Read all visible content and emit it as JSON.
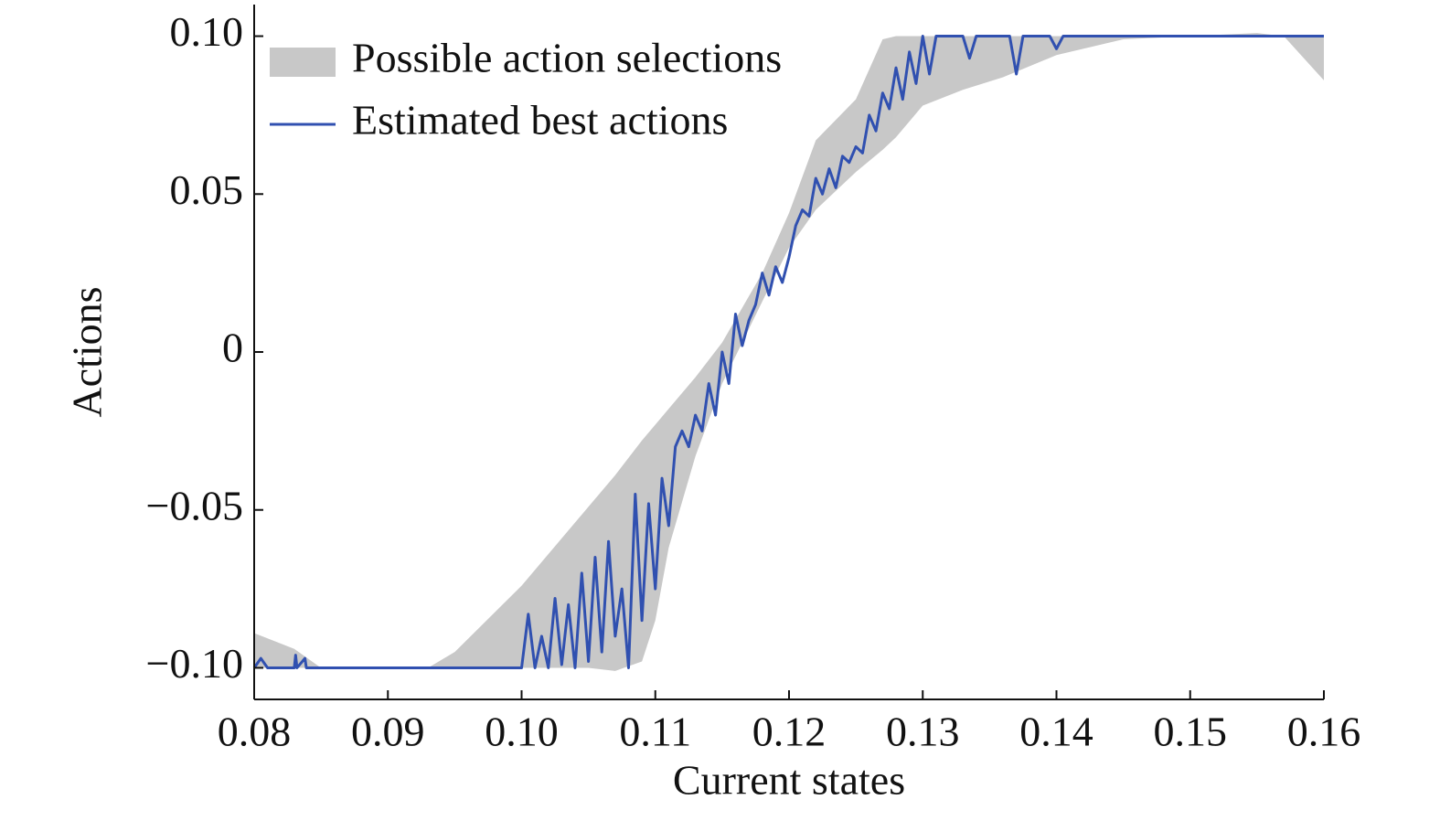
{
  "chart_data": {
    "type": "line",
    "xlabel": "Current states",
    "ylabel": "Actions",
    "xlim": [
      0.08,
      0.16
    ],
    "ylim": [
      -0.11,
      0.11
    ],
    "xticks": [
      0.08,
      0.09,
      {
        "value": 0.1,
        "label": "0.10"
      },
      0.11,
      0.12,
      0.13,
      0.14,
      0.15,
      0.16
    ],
    "yticks": [
      {
        "value": -0.1,
        "label": "−0.10"
      },
      {
        "value": -0.05,
        "label": "−0.05"
      },
      0,
      0.05,
      {
        "value": 0.1,
        "label": "0.10"
      }
    ],
    "legend": "upper left",
    "series": [
      {
        "name": "Possible action selections",
        "color": "#c8c8c8",
        "x": [
          0.08,
          0.083,
          0.085,
          0.093,
          0.095,
          0.1,
          0.105,
          0.107,
          0.109,
          0.11,
          0.111,
          0.113,
          0.115,
          0.118,
          0.12,
          0.122,
          0.125,
          0.127,
          0.128,
          0.13,
          0.133,
          0.136,
          0.14,
          0.145,
          0.15,
          0.155,
          0.157,
          0.16
        ],
        "upper": [
          -0.089,
          -0.094,
          -0.1,
          -0.1,
          -0.095,
          -0.074,
          -0.049,
          -0.039,
          -0.028,
          -0.023,
          -0.018,
          -0.008,
          0.003,
          0.025,
          0.044,
          0.067,
          0.08,
          0.099,
          0.1,
          0.1,
          0.1,
          0.1,
          0.1,
          0.1,
          0.1,
          0.101,
          0.1,
          0.1
        ],
        "lower": [
          -0.1,
          -0.1,
          -0.1,
          -0.1,
          -0.1,
          -0.1,
          -0.1,
          -0.101,
          -0.098,
          -0.085,
          -0.062,
          -0.033,
          -0.01,
          0.016,
          0.033,
          0.045,
          0.057,
          0.064,
          0.068,
          0.078,
          0.083,
          0.087,
          0.094,
          0.099,
          0.1,
          0.1,
          0.1,
          0.086
        ]
      },
      {
        "name": "Estimated best actions",
        "color": "#3050b0",
        "x": [
          0.08,
          0.0805,
          0.081,
          0.083,
          0.0831,
          0.0832,
          0.0838,
          0.0839,
          0.1,
          0.1005,
          0.101,
          0.1015,
          0.102,
          0.1025,
          0.103,
          0.1035,
          0.104,
          0.1045,
          0.105,
          0.1055,
          0.106,
          0.1065,
          0.107,
          0.1075,
          0.108,
          0.1085,
          0.109,
          0.1095,
          0.11,
          0.1105,
          0.111,
          0.1115,
          0.112,
          0.1125,
          0.113,
          0.1135,
          0.114,
          0.1145,
          0.115,
          0.1155,
          0.116,
          0.1165,
          0.117,
          0.1175,
          0.118,
          0.1185,
          0.119,
          0.1195,
          0.12,
          0.1205,
          0.121,
          0.1215,
          0.122,
          0.1225,
          0.123,
          0.1235,
          0.124,
          0.1245,
          0.125,
          0.1255,
          0.126,
          0.1265,
          0.127,
          0.1275,
          0.128,
          0.1285,
          0.129,
          0.1295,
          0.13,
          0.1305,
          0.131,
          0.133,
          0.1335,
          0.134,
          0.1365,
          0.137,
          0.1375,
          0.1395,
          0.14,
          0.1405,
          0.16
        ],
        "values": [
          -0.1,
          -0.097,
          -0.1,
          -0.1,
          -0.096,
          -0.1,
          -0.097,
          -0.1,
          -0.1,
          -0.083,
          -0.1,
          -0.09,
          -0.1,
          -0.078,
          -0.099,
          -0.08,
          -0.1,
          -0.07,
          -0.098,
          -0.065,
          -0.095,
          -0.06,
          -0.09,
          -0.075,
          -0.1,
          -0.045,
          -0.085,
          -0.048,
          -0.075,
          -0.04,
          -0.055,
          -0.03,
          -0.025,
          -0.03,
          -0.02,
          -0.025,
          -0.01,
          -0.02,
          0,
          -0.01,
          0.012,
          0.002,
          0.01,
          0.015,
          0.025,
          0.018,
          0.027,
          0.022,
          0.03,
          0.04,
          0.045,
          0.043,
          0.055,
          0.05,
          0.058,
          0.052,
          0.062,
          0.06,
          0.065,
          0.063,
          0.075,
          0.07,
          0.082,
          0.077,
          0.09,
          0.08,
          0.095,
          0.085,
          0.1,
          0.088,
          0.1,
          0.1,
          0.093,
          0.1,
          0.1,
          0.088,
          0.1,
          0.1,
          0.096,
          0.1,
          0.1
        ]
      }
    ]
  }
}
